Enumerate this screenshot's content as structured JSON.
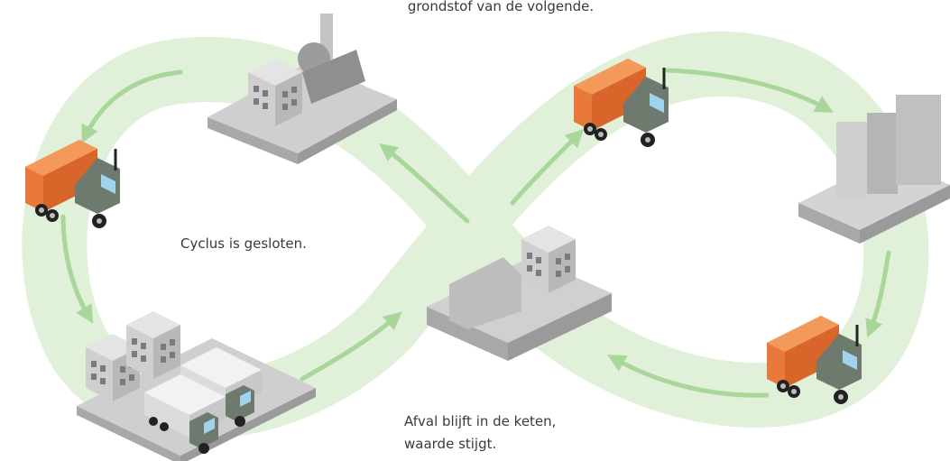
{
  "captions": {
    "top": "grondstof van de volgende.",
    "center": "Cyclus is gesloten.",
    "bottom": [
      "Afval blijft in de keten,",
      "waarde stijgt."
    ]
  }
}
